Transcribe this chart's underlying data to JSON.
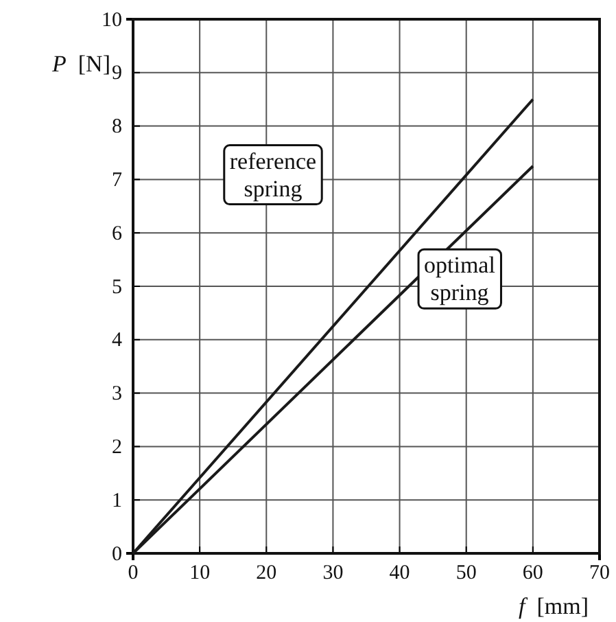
{
  "chart_data": {
    "type": "line",
    "xlabel": "f [mm]",
    "ylabel": "P [N]",
    "x": [
      0,
      60
    ],
    "series": [
      {
        "name": "reference spring",
        "color": "#1a1a1a",
        "values": [
          0,
          8.5
        ]
      },
      {
        "name": "optimal spring",
        "color": "#1a1a1a",
        "values": [
          0,
          7.25
        ]
      }
    ],
    "xlim": [
      0,
      70
    ],
    "ylim": [
      0,
      10
    ],
    "xticks": [
      0,
      10,
      20,
      30,
      40,
      50,
      60,
      70
    ],
    "yticks": [
      0,
      1,
      2,
      3,
      4,
      5,
      6,
      7,
      8,
      9,
      10
    ],
    "grid": true,
    "marker": "none",
    "line_style": "solid"
  }
}
